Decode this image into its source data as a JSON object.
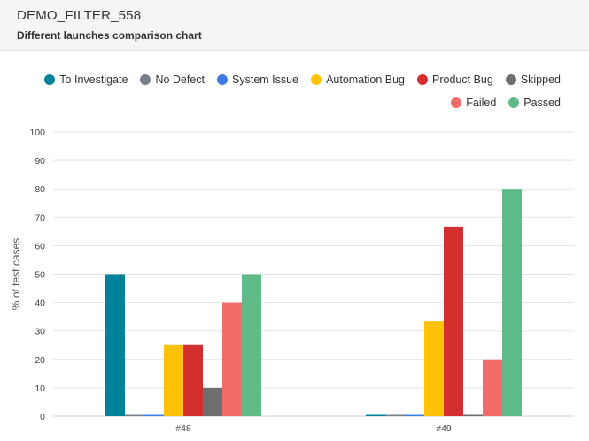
{
  "header": {
    "title": "DEMO_FILTER_558",
    "subtitle": "Different launches comparison chart"
  },
  "legend": {
    "row1": [
      {
        "label": "To Investigate",
        "color": "#00829b"
      },
      {
        "label": "No Defect",
        "color": "#777e89"
      },
      {
        "label": "System Issue",
        "color": "#3e7be6"
      },
      {
        "label": "Automation Bug",
        "color": "#ffc208"
      },
      {
        "label": "Product Bug",
        "color": "#d32f2f"
      },
      {
        "label": "Skipped",
        "color": "#6f6f6f"
      }
    ],
    "row2": [
      {
        "label": "Failed",
        "color": "#f36c6a"
      },
      {
        "label": "Passed",
        "color": "#5fbb88"
      }
    ]
  },
  "chart_data": {
    "type": "bar",
    "categories": [
      "#48",
      "#49"
    ],
    "ylabel": "% of test cases",
    "xlabel": "",
    "ylim": [
      0,
      100
    ],
    "yticks": [
      0,
      10,
      20,
      30,
      40,
      50,
      60,
      70,
      80,
      90,
      100
    ],
    "grid": true,
    "legend_position": "top-right",
    "series": [
      {
        "name": "To Investigate",
        "color": "#00829b",
        "values": [
          50,
          0
        ]
      },
      {
        "name": "No Defect",
        "color": "#777e89",
        "values": [
          0,
          0
        ]
      },
      {
        "name": "System Issue",
        "color": "#3e7be6",
        "values": [
          0,
          0
        ]
      },
      {
        "name": "Automation Bug",
        "color": "#ffc208",
        "values": [
          25,
          33.3
        ]
      },
      {
        "name": "Product Bug",
        "color": "#d32f2f",
        "values": [
          25,
          66.7
        ]
      },
      {
        "name": "Skipped",
        "color": "#6f6f6f",
        "values": [
          10,
          0
        ]
      },
      {
        "name": "Failed",
        "color": "#f36c6a",
        "values": [
          40,
          20
        ]
      },
      {
        "name": "Passed",
        "color": "#5fbb88",
        "values": [
          50,
          80
        ]
      }
    ]
  }
}
